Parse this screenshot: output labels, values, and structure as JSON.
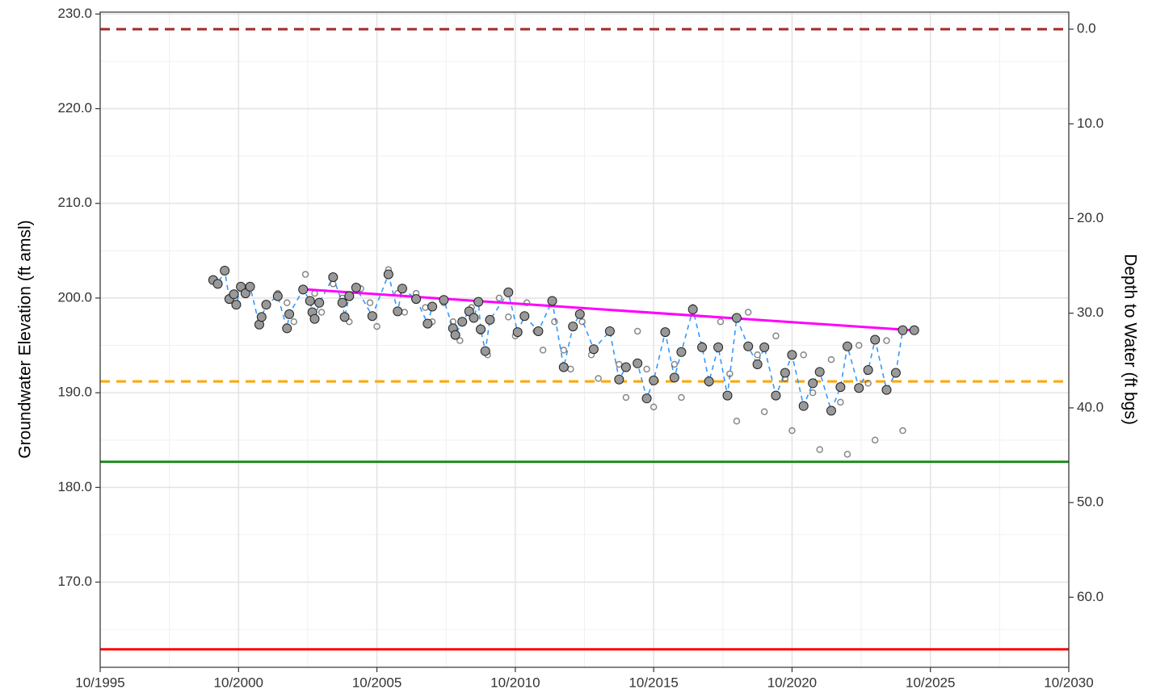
{
  "chart_data": {
    "type": "scatter",
    "ylabel": "Groundwater Elevation (ft amsl)",
    "y2label": "Depth to Water (ft bgs)",
    "xlim": [
      "1995-10",
      "2030-10"
    ],
    "xticks": [
      {
        "value": "1995-10",
        "label": "10/1995"
      },
      {
        "value": "2000-10",
        "label": "10/2000"
      },
      {
        "value": "2005-10",
        "label": "10/2005"
      },
      {
        "value": "2010-10",
        "label": "10/2010"
      },
      {
        "value": "2015-10",
        "label": "10/2015"
      },
      {
        "value": "2020-10",
        "label": "10/2020"
      },
      {
        "value": "2025-10",
        "label": "10/2025"
      },
      {
        "value": "2030-10",
        "label": "10/2030"
      }
    ],
    "xminor": [
      "1998-04",
      "2003-04",
      "2008-04",
      "2013-04",
      "2018-04",
      "2023-04",
      "2028-04"
    ],
    "ylim": [
      161.0,
      230.2
    ],
    "yticks": [
      {
        "value": 170,
        "label": "170.0"
      },
      {
        "value": 180,
        "label": "180.0"
      },
      {
        "value": 190,
        "label": "190.0"
      },
      {
        "value": 200,
        "label": "200.0"
      },
      {
        "value": 210,
        "label": "210.0"
      },
      {
        "value": 220,
        "label": "220.0"
      },
      {
        "value": 230,
        "label": "230.0"
      }
    ],
    "yminor": [
      165,
      175,
      185,
      195,
      205,
      215,
      225
    ],
    "y2lim": [
      67.4,
      -1.8
    ],
    "y2ticks": [
      {
        "value": 0,
        "label": "0.0"
      },
      {
        "value": 10,
        "label": "10.0"
      },
      {
        "value": 20,
        "label": "20.0"
      },
      {
        "value": 30,
        "label": "30.0"
      },
      {
        "value": 40,
        "label": "40.0"
      },
      {
        "value": 50,
        "label": "50.0"
      },
      {
        "value": 60,
        "label": "60.0"
      }
    ],
    "grid": true,
    "reference_lines": [
      {
        "value": 228.4,
        "color": "#a52a2a",
        "dashed": true
      },
      {
        "value": 191.2,
        "color": "#ffa500",
        "dashed": true
      },
      {
        "value": 182.7,
        "color": "#228b22",
        "dashed": false
      },
      {
        "value": 162.9,
        "color": "#ff0000",
        "dashed": false
      }
    ],
    "series": [
      {
        "kind": "continuous",
        "color": "#555555",
        "x": [
          "2002-03",
          "2002-07",
          "2002-10",
          "2003-03",
          "2003-07",
          "2003-10",
          "2004-03",
          "2004-07",
          "2004-10",
          "2005-03",
          "2005-07",
          "2005-10",
          "2006-03",
          "2006-07",
          "2006-10",
          "2007-03",
          "2007-07",
          "2007-10",
          "2008-03",
          "2008-07",
          "2008-10",
          "2009-03",
          "2009-07",
          "2009-10",
          "2010-03",
          "2010-07",
          "2010-10",
          "2011-03",
          "2011-07",
          "2011-10",
          "2012-03",
          "2012-07",
          "2012-10",
          "2013-03",
          "2013-07",
          "2013-10",
          "2014-03",
          "2014-07",
          "2014-10",
          "2015-03",
          "2015-07",
          "2015-10",
          "2016-03",
          "2016-07",
          "2016-10",
          "2017-03",
          "2017-07",
          "2017-10",
          "2018-03",
          "2018-07",
          "2018-10",
          "2019-03",
          "2019-07",
          "2019-10",
          "2020-03",
          "2020-07",
          "2020-10",
          "2021-03",
          "2021-07",
          "2021-10",
          "2022-03",
          "2022-07",
          "2022-10",
          "2023-03",
          "2023-07",
          "2023-10",
          "2024-03",
          "2024-07",
          "2024-10",
          "2025-03"
        ],
        "values": [
          200.5,
          199.5,
          197.5,
          202.5,
          200.5,
          198.5,
          201.5,
          200.0,
          197.5,
          201.0,
          199.5,
          197.0,
          203.0,
          200.5,
          198.5,
          200.5,
          199.0,
          197.5,
          199.5,
          197.5,
          195.5,
          199.0,
          196.5,
          194.0,
          200.0,
          198.0,
          196.0,
          199.5,
          196.5,
          194.5,
          197.5,
          194.5,
          192.5,
          197.5,
          194.0,
          191.5,
          196.5,
          193.0,
          189.5,
          196.5,
          192.5,
          188.5,
          196.5,
          193.0,
          189.5,
          199.0,
          195.0,
          191.0,
          197.5,
          192.0,
          187.0,
          198.5,
          194.0,
          188.0,
          196.0,
          191.5,
          186.0,
          194.0,
          190.0,
          184.0,
          193.5,
          189.0,
          183.5,
          195.0,
          191.0,
          185.0,
          195.5,
          192.0,
          186.0,
          196.6
        ]
      },
      {
        "kind": "manual",
        "color": "#999999",
        "line_color": "#3399ff",
        "x": [
          "1999-11",
          "2000-01",
          "2000-04",
          "2000-06",
          "2000-08",
          "2000-09",
          "2000-11",
          "2001-01",
          "2001-03",
          "2001-07",
          "2001-08",
          "2001-10",
          "2002-03",
          "2002-07",
          "2002-08",
          "2003-02",
          "2003-05",
          "2003-06",
          "2003-07",
          "2003-09",
          "2004-03",
          "2004-07",
          "2004-08",
          "2004-10",
          "2005-01",
          "2005-08",
          "2006-03",
          "2006-07",
          "2006-09",
          "2007-03",
          "2007-08",
          "2007-10",
          "2008-03",
          "2008-07",
          "2008-08",
          "2008-11",
          "2009-02",
          "2009-04",
          "2009-06",
          "2009-07",
          "2009-09",
          "2009-11",
          "2010-07",
          "2010-11",
          "2011-02",
          "2011-08",
          "2012-02",
          "2012-07",
          "2012-11",
          "2013-02",
          "2013-08",
          "2014-03",
          "2014-07",
          "2014-10",
          "2015-03",
          "2015-07",
          "2015-10",
          "2016-03",
          "2016-07",
          "2016-10",
          "2017-03",
          "2017-07",
          "2017-10",
          "2018-02",
          "2018-06",
          "2018-10",
          "2019-03",
          "2019-07",
          "2019-10",
          "2020-03",
          "2020-07",
          "2020-10",
          "2021-03",
          "2021-07",
          "2021-10",
          "2022-03",
          "2022-07",
          "2022-10",
          "2023-03",
          "2023-07",
          "2023-10",
          "2024-03",
          "2024-07",
          "2024-10",
          "2025-03"
        ],
        "values": [
          201.9,
          201.5,
          202.9,
          199.9,
          200.4,
          199.3,
          201.2,
          200.5,
          201.2,
          197.2,
          198.0,
          199.3,
          200.2,
          196.8,
          198.3,
          200.9,
          199.7,
          198.5,
          197.8,
          199.5,
          202.2,
          199.5,
          198.0,
          200.2,
          201.1,
          198.1,
          202.5,
          198.6,
          201.0,
          199.9,
          197.3,
          199.1,
          199.8,
          196.8,
          196.1,
          197.5,
          198.6,
          197.9,
          199.6,
          196.7,
          194.4,
          197.7,
          200.6,
          196.4,
          198.1,
          196.5,
          199.7,
          192.7,
          197.0,
          198.3,
          194.6,
          196.5,
          191.4,
          192.7,
          193.1,
          189.4,
          191.3,
          196.4,
          191.6,
          194.3,
          198.8,
          194.8,
          191.2,
          194.8,
          189.7,
          197.9,
          194.9,
          193.0,
          194.8,
          189.7,
          192.1,
          194.0,
          188.6,
          191.0,
          192.2,
          188.1,
          190.6,
          194.9,
          190.5,
          192.4,
          195.6,
          190.3,
          192.1,
          196.6,
          196.6
        ]
      },
      {
        "kind": "trend",
        "color": "#ff00ff",
        "x": [
          "2003-04",
          "2025-02"
        ],
        "values": [
          200.9,
          196.6
        ]
      }
    ]
  }
}
